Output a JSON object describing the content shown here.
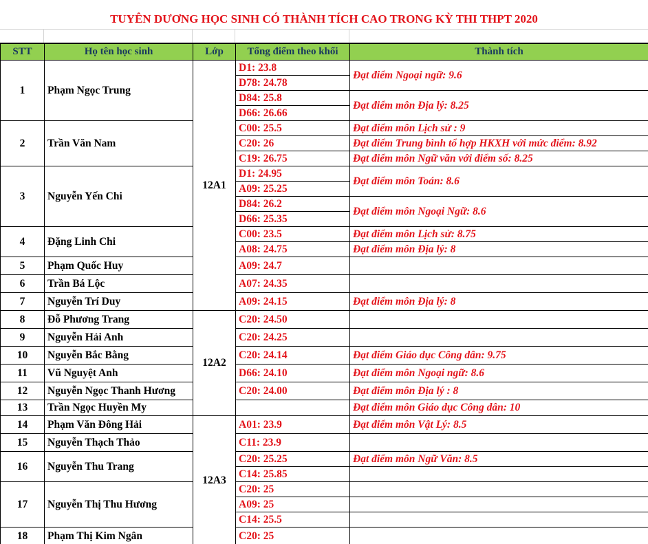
{
  "title": "TUYÊN DƯƠNG HỌC SINH CÓ THÀNH TÍCH CAO TRONG KỲ THI THPT 2020",
  "headers": {
    "stt": "STT",
    "name": "Họ tên học sinh",
    "class": "Lớp",
    "scores": "Tổng điểm theo khối",
    "achievement": "Thành tích"
  },
  "colors": {
    "header_bg": "#92d050",
    "highlight": "#e3141b"
  },
  "classes": [
    {
      "name": "12A1",
      "students": [
        {
          "stt": "1",
          "name": "Phạm Ngọc Trung",
          "scores": [
            "D1: 23.8",
            "D78: 24.78",
            "D84: 25.8",
            "D66: 26.66"
          ],
          "achievements": [
            {
              "text": "Đạt điểm Ngoại ngữ:  9.6",
              "rows": 2
            },
            {
              "text": "Đạt điểm môn Địa lý: 8.25",
              "rows": 2
            }
          ]
        },
        {
          "stt": "2",
          "name": "Trần Văn Nam",
          "scores": [
            "C00: 25.5",
            "C20: 26",
            "C19: 26.75"
          ],
          "achievements": [
            {
              "text": "Đạt điểm môn Lịch sử : 9",
              "rows": 1
            },
            {
              "text": "Đạt điểm Trung bình tổ hợp HKXH với mức điểm: 8.92",
              "rows": 1
            },
            {
              "text": "Đạt điểm môn Ngữ văn với điểm số: 8.25",
              "rows": 1
            }
          ]
        },
        {
          "stt": "3",
          "name": "Nguyễn Yến Chi",
          "scores": [
            "D1: 24.95",
            "A09: 25.25",
            "D84: 26.2",
            "D66: 25.35"
          ],
          "achievements": [
            {
              "text": "Đạt điểm môn Toán: 8.6",
              "rows": 2
            },
            {
              "text": "Đạt điểm môn Ngoại Ngữ: 8.6",
              "rows": 2
            }
          ]
        },
        {
          "stt": "4",
          "name": "Đặng Linh Chi",
          "scores": [
            "C00: 23.5",
            "A08: 24.75"
          ],
          "achievements": [
            {
              "text": "Đạt điểm môn Lịch sử: 8.75",
              "rows": 1
            },
            {
              "text": "Đạt điểm môn Địa lý: 8",
              "rows": 1
            }
          ]
        },
        {
          "stt": "5",
          "name": "Phạm Quốc Huy",
          "scores": [
            "A09: 24.7"
          ],
          "achievements": [
            {
              "text": "",
              "rows": 1
            }
          ]
        },
        {
          "stt": "6",
          "name": "Trần Bá Lộc",
          "scores": [
            "A07: 24.35"
          ],
          "achievements": [
            {
              "text": "",
              "rows": 1
            }
          ]
        },
        {
          "stt": "7",
          "name": "Nguyễn Trí Duy",
          "scores": [
            "A09: 24.15"
          ],
          "achievements": [
            {
              "text": "Đạt điểm môn Địa lý: 8",
              "rows": 1
            }
          ]
        }
      ]
    },
    {
      "name": "12A2",
      "students": [
        {
          "stt": "8",
          "name": "Đỗ Phương Trang",
          "scores": [
            "C20: 24.50"
          ],
          "achievements": [
            {
              "text": "",
              "rows": 1
            }
          ]
        },
        {
          "stt": "9",
          "name": "Nguyễn Hải Anh",
          "scores": [
            "C20: 24.25"
          ],
          "achievements": [
            {
              "text": "",
              "rows": 1
            }
          ]
        },
        {
          "stt": "10",
          "name": "Nguyễn Bắc Bằng",
          "scores": [
            "C20: 24.14"
          ],
          "achievements": [
            {
              "text": "Đạt điểm Giáo dục Công dân: 9.75",
              "rows": 1
            }
          ]
        },
        {
          "stt": "11",
          "name": "Vũ Nguyệt Anh",
          "scores": [
            "D66: 24.10"
          ],
          "achievements": [
            {
              "text": "Đạt điểm môn Ngoại ngữ: 8.6",
              "rows": 1
            }
          ]
        },
        {
          "stt": "12",
          "name": "Nguyễn Ngọc Thanh Hương",
          "scores": [
            "C20: 24.00"
          ],
          "achievements": [
            {
              "text": "Đạt điểm môn Địa lý : 8",
              "rows": 1
            }
          ]
        },
        {
          "stt": "13",
          "name": "Trần Ngọc Huyền My",
          "scores": [
            ""
          ],
          "achievements": [
            {
              "text": "Đạt điểm môn Giáo dục Công dân: 10",
              "rows": 1
            }
          ]
        }
      ]
    },
    {
      "name": "12A3",
      "students": [
        {
          "stt": "14",
          "name": "Phạm Văn Đông Hải",
          "scores": [
            "A01: 23.9"
          ],
          "achievements": [
            {
              "text": "Đạt điểm môn Vật Lý: 8.5",
              "rows": 1
            }
          ]
        },
        {
          "stt": "15",
          "name": "Nguyễn Thạch Thảo",
          "scores": [
            "C11: 23.9"
          ],
          "achievements": [
            {
              "text": "",
              "rows": 1
            }
          ]
        },
        {
          "stt": "16",
          "name": "Nguyễn Thu Trang",
          "scores": [
            "C20: 25.25",
            "C14: 25.85"
          ],
          "achievements": [
            {
              "text": "Đạt điểm môn Ngữ Văn: 8.5",
              "rows": 1
            },
            {
              "text": "",
              "rows": 1
            }
          ]
        },
        {
          "stt": "17",
          "name": "Nguyễn Thị Thu Hương",
          "scores": [
            "C20: 25",
            "A09: 25",
            "C14: 25.5"
          ],
          "achievements": [
            {
              "text": "",
              "rows": 1
            },
            {
              "text": "",
              "rows": 1
            },
            {
              "text": "",
              "rows": 1
            }
          ]
        },
        {
          "stt": "18",
          "name": "Phạm Thị Kim Ngân",
          "scores": [
            "C20: 25"
          ],
          "achievements": [
            {
              "text": "",
              "rows": 1
            }
          ]
        }
      ]
    }
  ]
}
